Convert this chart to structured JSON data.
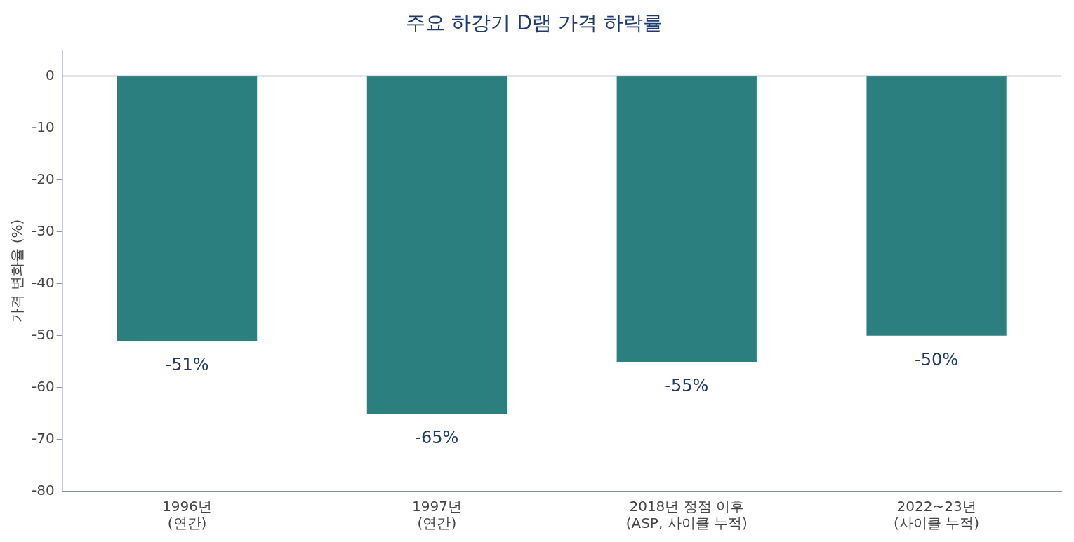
{
  "chart_data": {
    "type": "bar",
    "title": "주요 하강기 D램 가격 하락률",
    "ylabel": "가격 변화율 (%)",
    "categories": [
      "1996년\n(연간)",
      "1997년\n(연간)",
      "2018년 정점 이후\n(ASP, 사이클 누적)",
      "2022~23년\n(사이클 누적)"
    ],
    "values": [
      -51,
      -65,
      -55,
      -50
    ],
    "color": "#2b7f7e",
    "value_labels": [
      "-51%",
      "-65%",
      "-55%",
      "-50%"
    ],
    "ylim": [
      -80,
      5
    ],
    "yticks": [
      0,
      -10,
      -20,
      -30,
      -40,
      -50,
      -60,
      -70,
      -80
    ],
    "ref_lines": [
      {
        "axis": "y",
        "value": 0,
        "color": "#8a93a6"
      }
    ],
    "grid": false,
    "legend": false
  }
}
